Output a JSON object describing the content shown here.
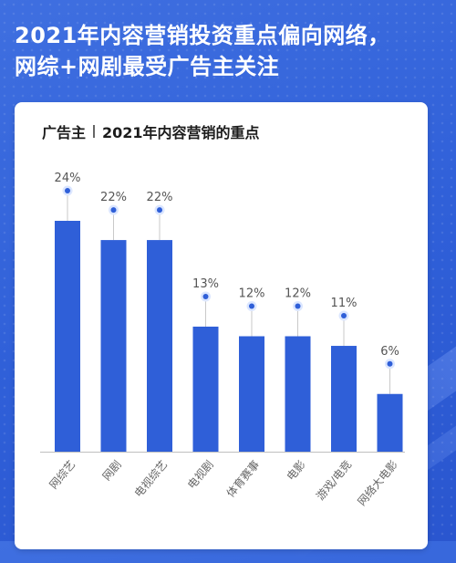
{
  "headline": {
    "line1": "2021年内容营销投资重点偏向网络，",
    "line2": "网综+网剧最受广告主关注"
  },
  "card": {
    "title_prefix": "广告主",
    "title_main": "2021年内容营销的重点"
  },
  "colors": {
    "background": "#2f5fd8",
    "bar": "#2f5fd8",
    "dot": "#2f5fd8"
  },
  "chart_data": {
    "type": "bar",
    "categories": [
      "网综艺",
      "网剧",
      "电视综艺",
      "电视剧",
      "体育赛事",
      "电影",
      "游戏/电竞",
      "网络大电影"
    ],
    "values": [
      24,
      22,
      22,
      13,
      12,
      12,
      11,
      6
    ],
    "value_labels": [
      "24%",
      "22%",
      "22%",
      "13%",
      "12%",
      "12%",
      "11%",
      "6%"
    ],
    "ylim": [
      0,
      24
    ],
    "grid": false,
    "legend": "none"
  }
}
